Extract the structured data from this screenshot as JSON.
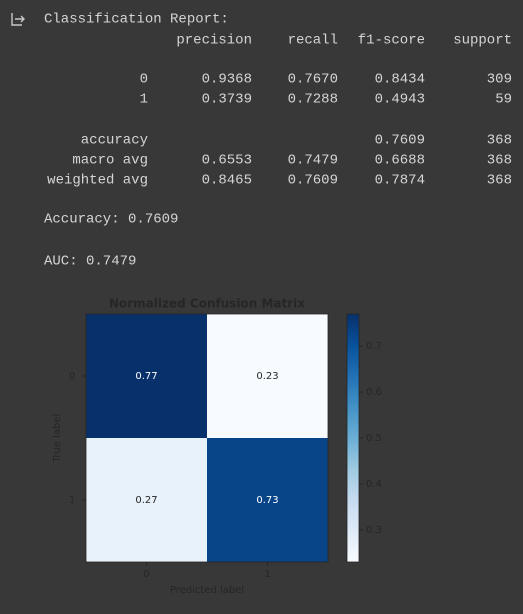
{
  "report": {
    "title": "Classification Report:",
    "columns": [
      "precision",
      "recall",
      "f1-score",
      "support"
    ],
    "rows": [
      {
        "label": "0",
        "values": [
          "0.9368",
          "0.7670",
          "0.8434",
          "309"
        ]
      },
      {
        "label": "1",
        "values": [
          "0.3739",
          "0.7288",
          "0.4943",
          "59"
        ]
      },
      {
        "label": "accuracy",
        "values": [
          null,
          null,
          "0.7609",
          "368"
        ]
      },
      {
        "label": "macro avg",
        "values": [
          "0.6553",
          "0.7479",
          "0.6688",
          "368"
        ]
      },
      {
        "label": "weighted avg",
        "values": [
          "0.8465",
          "0.7609",
          "0.7874",
          "368"
        ]
      }
    ]
  },
  "accuracy_line": "Accuracy: 0.7609",
  "auc_line": "AUC: 0.7479",
  "chart_data": {
    "type": "heatmap",
    "title": "Normalized Confusion Matrix",
    "xlabel": "Predicted label",
    "ylabel": "True label",
    "x_categories": [
      "0",
      "1"
    ],
    "y_categories": [
      "0",
      "1"
    ],
    "values": [
      [
        0.77,
        0.23
      ],
      [
        0.27,
        0.73
      ]
    ],
    "colormap": "Blues",
    "clim": [
      0.23,
      0.77
    ],
    "colorbar_ticks": [
      0.3,
      0.4,
      0.5,
      0.6,
      0.7
    ]
  }
}
